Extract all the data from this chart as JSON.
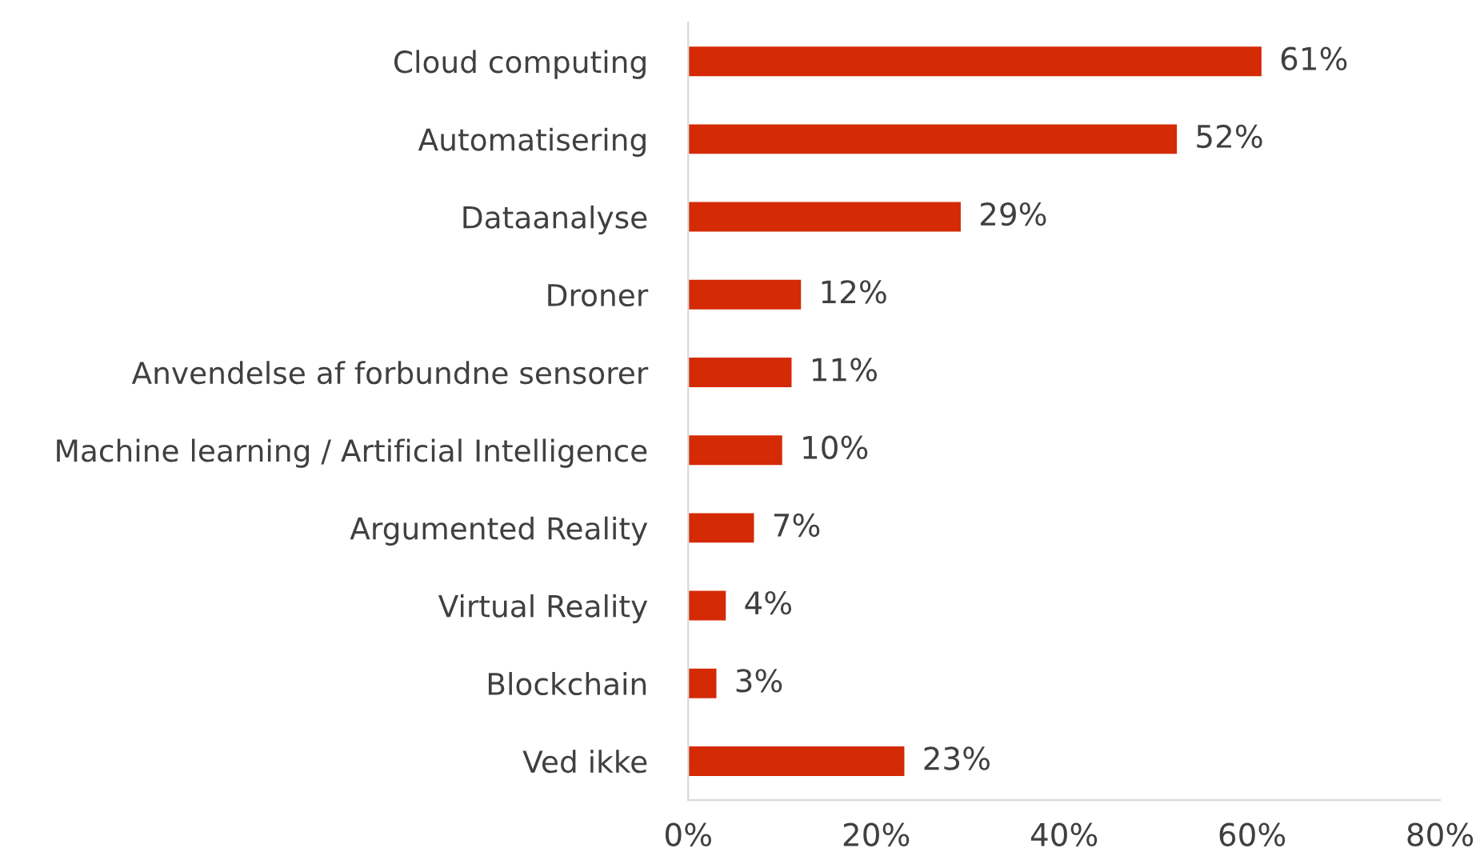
{
  "chart_data": {
    "type": "bar",
    "orientation": "horizontal",
    "categories": [
      "Cloud computing",
      "Automatisering",
      "Dataanalyse",
      "Droner",
      "Anvendelse af forbundne sensorer",
      "Machine learning / Artificial Intelligence",
      "Argumented Reality",
      "Virtual Reality",
      "Blockchain",
      "Ved ikke"
    ],
    "values": [
      61,
      52,
      29,
      12,
      11,
      10,
      7,
      4,
      3,
      23
    ],
    "value_labels": [
      "61%",
      "52%",
      "29%",
      "12%",
      "11%",
      "10%",
      "7%",
      "4%",
      "3%",
      "23%"
    ],
    "color": "#d42a05",
    "xlim": [
      0,
      80
    ],
    "xticks": [
      {
        "value": 0,
        "label": "0%"
      },
      {
        "value": 20,
        "label": "20%"
      },
      {
        "value": 40,
        "label": "40%"
      },
      {
        "value": 60,
        "label": "60%"
      },
      {
        "value": 80,
        "label": "80%"
      }
    ],
    "grid": false
  }
}
